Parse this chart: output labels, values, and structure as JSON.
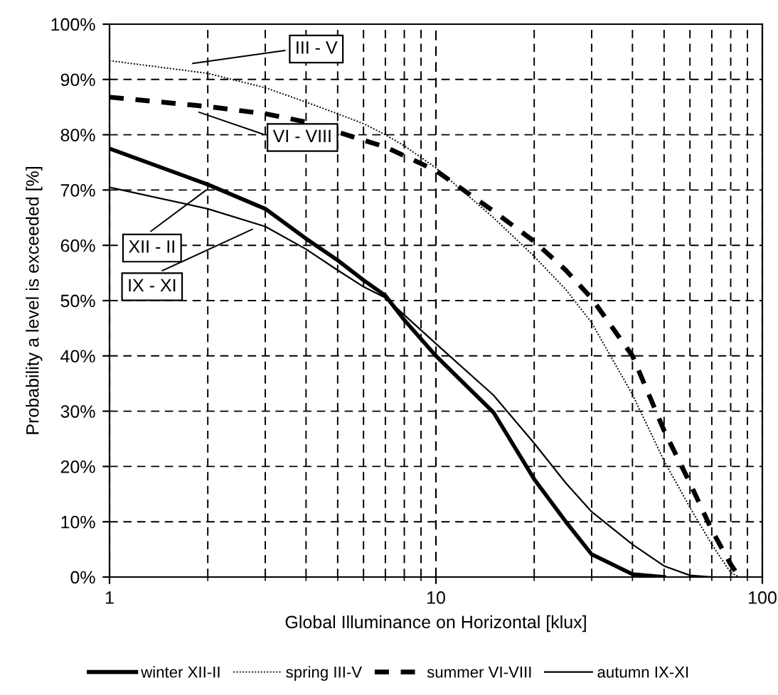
{
  "chart_data": {
    "type": "line",
    "xlabel": "Global Illuminance on Horizontal [klux]",
    "ylabel": "Probability a level is exceeded [%]",
    "log": "x",
    "xlim": [
      1,
      100
    ],
    "xticks": [
      1,
      10,
      100
    ],
    "ylim": [
      0,
      100
    ],
    "yticks": [
      {
        "value": 0,
        "label": "0%"
      },
      {
        "value": 10,
        "label": "10%"
      },
      {
        "value": 20,
        "label": "20%"
      },
      {
        "value": 30,
        "label": "30%"
      },
      {
        "value": 40,
        "label": "40%"
      },
      {
        "value": 50,
        "label": "50%"
      },
      {
        "value": 60,
        "label": "60%"
      },
      {
        "value": 70,
        "label": "70%"
      },
      {
        "value": 80,
        "label": "80%"
      },
      {
        "value": 90,
        "label": "90%"
      },
      {
        "value": 100,
        "label": "100%"
      }
    ],
    "grid": true,
    "legend": "bottom",
    "marker": "none",
    "series": [
      {
        "name": "winter XII-II",
        "color": "#000000",
        "line_style": "solid",
        "x": [
          1,
          2,
          3,
          4,
          5,
          6,
          7,
          8,
          10,
          15,
          20,
          25,
          30,
          40,
          50
        ],
        "values": [
          77.5,
          71,
          66.6,
          61.2,
          57.3,
          53.7,
          50.9,
          46.5,
          40,
          29.8,
          17.7,
          10,
          4.1,
          0.5,
          0
        ]
      },
      {
        "name": "spring III-V",
        "color": "#000000",
        "line_style": "dotted",
        "x": [
          1,
          2,
          3,
          4,
          5,
          6,
          7,
          8,
          10,
          15,
          20,
          25,
          30,
          40,
          50,
          60,
          70,
          80,
          85
        ],
        "values": [
          93.4,
          91.1,
          88.5,
          85.9,
          83.8,
          82,
          80,
          78,
          74,
          65,
          58,
          52,
          46,
          33,
          21,
          12.6,
          5.9,
          0.8,
          0
        ]
      },
      {
        "name": "summer VI-VIII",
        "color": "#000000",
        "line_style": "dashed",
        "x": [
          1,
          2,
          3,
          4,
          5,
          6,
          7,
          10,
          15,
          20,
          25,
          30,
          40,
          50,
          60,
          70,
          80,
          85
        ],
        "values": [
          86.8,
          85.1,
          83.8,
          82.3,
          80.5,
          79,
          77.8,
          73.5,
          66.2,
          60.7,
          55.5,
          50.4,
          40,
          26.5,
          17,
          8.5,
          2.3,
          0
        ]
      },
      {
        "name": "autumn IX-XI",
        "color": "#000000",
        "line_style": "solid",
        "x": [
          1,
          2,
          3,
          4,
          5,
          6,
          7,
          10,
          15,
          20,
          25,
          30,
          40,
          50,
          60,
          70
        ],
        "values": [
          70.5,
          66.6,
          63.4,
          59.3,
          55.5,
          52.5,
          50.5,
          42.2,
          32.9,
          24.2,
          17,
          11.8,
          5.9,
          2,
          0.3,
          0
        ]
      }
    ],
    "annotations": [
      {
        "text": "III - V",
        "x": 1.75,
        "y": 92.8
      },
      {
        "text": "VI - VIII",
        "x": 1.83,
        "y": 84.3
      },
      {
        "text": "XII - II",
        "x": 2.02,
        "y": 70.4
      },
      {
        "text": "IX - XI",
        "x": 2.81,
        "y": 63.2
      }
    ]
  }
}
